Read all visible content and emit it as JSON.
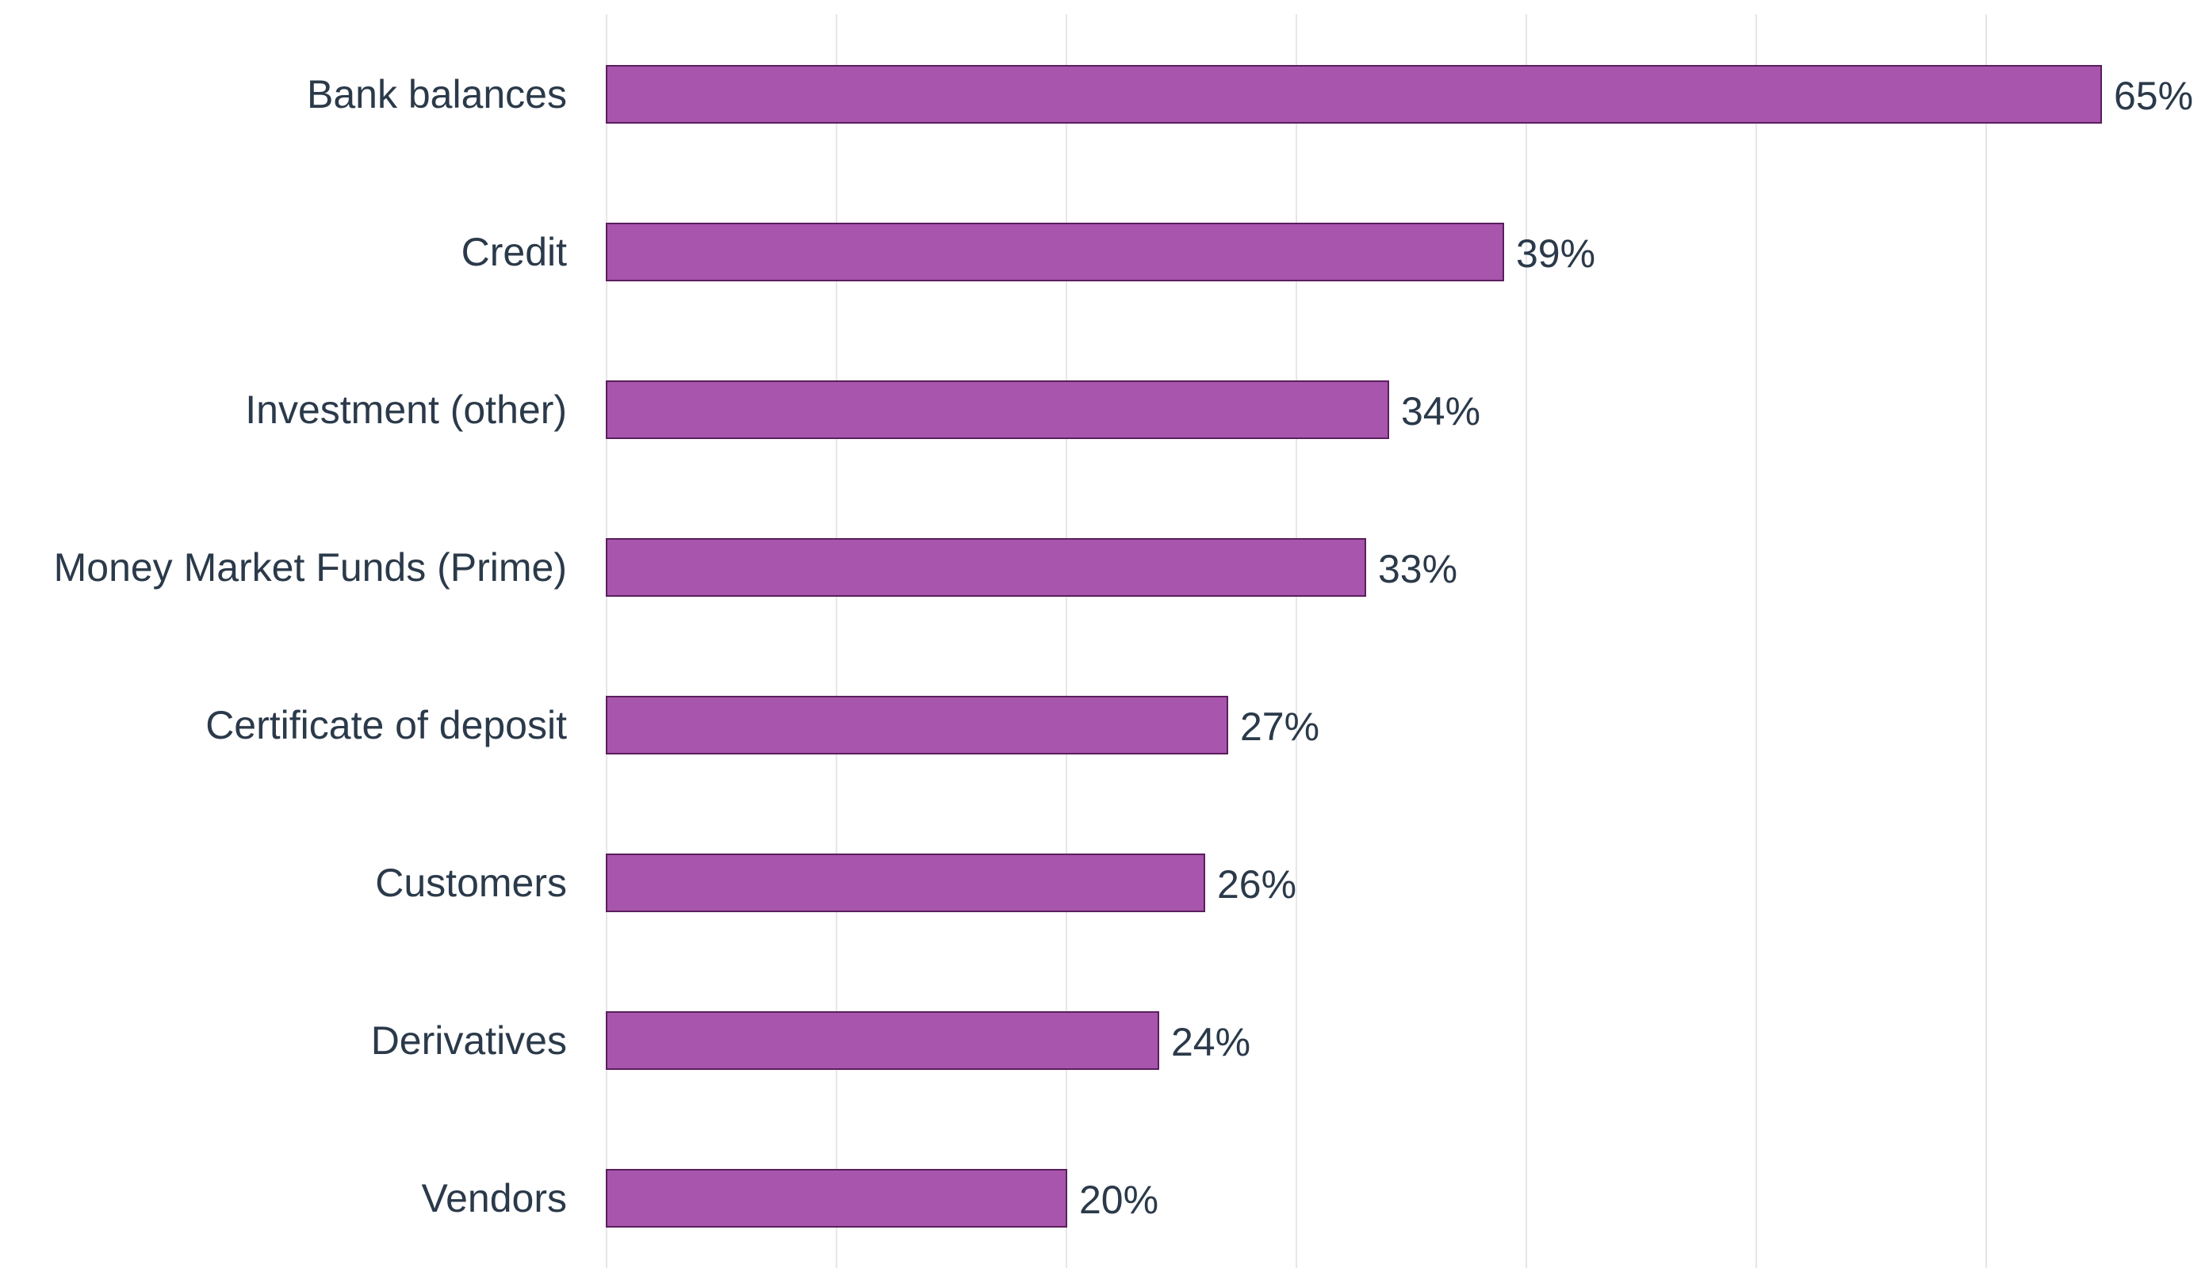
{
  "chart_data": {
    "type": "bar",
    "orientation": "horizontal",
    "title": "",
    "xlabel": "",
    "ylabel": "",
    "categories": [
      "Bank balances",
      "Credit",
      "Investment (other)",
      "Money Market Funds (Prime)",
      "Certificate of deposit",
      "Customers",
      "Derivatives",
      "Vendors"
    ],
    "values": [
      65,
      39,
      34,
      33,
      27,
      26,
      24,
      20
    ],
    "data_labels": [
      "65%",
      "39%",
      "34%",
      "33%",
      "27%",
      "26%",
      "24%",
      "20%"
    ],
    "xlim": [
      0,
      70
    ],
    "x_gridlines": [
      0,
      10,
      20,
      30,
      40,
      50,
      60
    ],
    "grid": true,
    "x_tick_labels_shown": false,
    "legend": "none",
    "bar_color": "#a855ad",
    "bar_edge_color": "#5a1f5c",
    "label_color": "#2b3a4a",
    "grid_color": "#e6e6e6"
  }
}
